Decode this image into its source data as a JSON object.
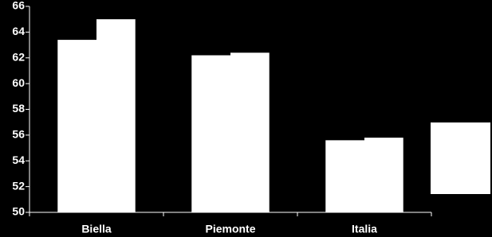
{
  "chart_data": {
    "type": "bar",
    "categories": [
      "Biella",
      "Piemonte",
      "Italia"
    ],
    "series": [
      {
        "color": "#ffffff",
        "values": [
          63.4,
          62.2,
          55.6
        ]
      },
      {
        "color": "#ffffff",
        "values": [
          65.0,
          62.4,
          55.8
        ]
      }
    ],
    "ylim": [
      50,
      66
    ],
    "yticks": [
      50,
      52,
      54,
      56,
      58,
      60,
      62,
      64,
      66
    ],
    "grid": false
  }
}
